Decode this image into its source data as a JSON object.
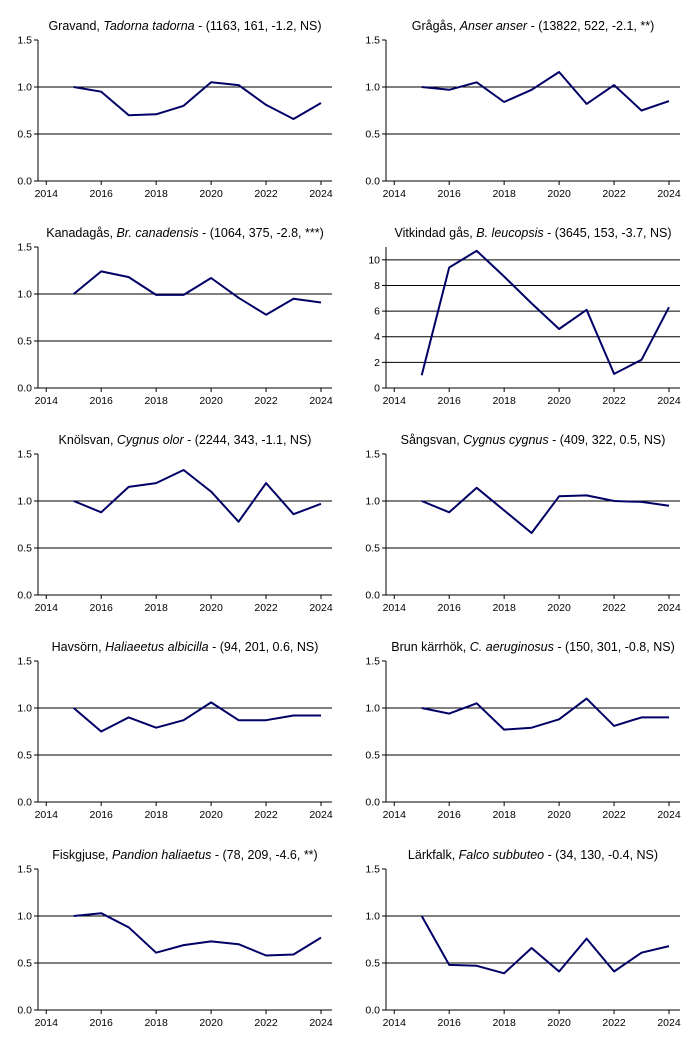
{
  "chart_data": [
    {
      "type": "line",
      "title": {
        "prefix": "Gravand, ",
        "species": "Tadorna tadorna",
        "stats": " - (1163, 161, -1.2, NS)"
      },
      "x": [
        2015,
        2016,
        2017,
        2018,
        2019,
        2020,
        2021,
        2022,
        2023,
        2024
      ],
      "values": [
        1.0,
        0.95,
        0.7,
        0.71,
        0.8,
        1.05,
        1.02,
        0.81,
        0.66,
        0.83
      ],
      "xlim": [
        2013.7,
        2024.4
      ],
      "ylim": [
        0,
        1.5
      ],
      "xticks": [
        2014,
        2016,
        2018,
        2020,
        2022,
        2024
      ],
      "yticks": [
        0.0,
        0.5,
        1.0,
        1.5
      ],
      "ytick_labels": [
        "0.0",
        "0.5",
        "1.0",
        "1.5"
      ],
      "hlines": [
        0.5,
        1.0
      ]
    },
    {
      "type": "line",
      "title": {
        "prefix": "Grågås, ",
        "species": "Anser anser",
        "stats": " - (13822, 522, -2.1, **)"
      },
      "x": [
        2015,
        2016,
        2017,
        2018,
        2019,
        2020,
        2021,
        2022,
        2023,
        2024
      ],
      "values": [
        1.0,
        0.97,
        1.05,
        0.84,
        0.97,
        1.16,
        0.82,
        1.02,
        0.75,
        0.85
      ],
      "xlim": [
        2013.7,
        2024.4
      ],
      "ylim": [
        0,
        1.5
      ],
      "xticks": [
        2014,
        2016,
        2018,
        2020,
        2022,
        2024
      ],
      "yticks": [
        0.0,
        0.5,
        1.0,
        1.5
      ],
      "ytick_labels": [
        "0.0",
        "0.5",
        "1.0",
        "1.5"
      ],
      "hlines": [
        0.5,
        1.0
      ]
    },
    {
      "type": "line",
      "title": {
        "prefix": "Kanadagås, ",
        "species": "Br. canadensis",
        "stats": " - (1064, 375, -2.8, ***)"
      },
      "x": [
        2015,
        2016,
        2017,
        2018,
        2019,
        2020,
        2021,
        2022,
        2023,
        2024
      ],
      "values": [
        1.0,
        1.24,
        1.18,
        0.99,
        0.99,
        1.17,
        0.96,
        0.78,
        0.95,
        0.91
      ],
      "xlim": [
        2013.7,
        2024.4
      ],
      "ylim": [
        0,
        1.5
      ],
      "xticks": [
        2014,
        2016,
        2018,
        2020,
        2022,
        2024
      ],
      "yticks": [
        0.0,
        0.5,
        1.0,
        1.5
      ],
      "ytick_labels": [
        "0.0",
        "0.5",
        "1.0",
        "1.5"
      ],
      "hlines": [
        0.5,
        1.0
      ]
    },
    {
      "type": "line",
      "title": {
        "prefix": "Vitkindad gås, ",
        "species": "B. leucopsis",
        "stats": " - (3645, 153, -3.7, NS)"
      },
      "x": [
        2015,
        2016,
        2017,
        2018,
        2019,
        2020,
        2021,
        2022,
        2023,
        2024
      ],
      "values": [
        1.0,
        9.4,
        10.7,
        8.7,
        6.6,
        4.6,
        6.1,
        1.1,
        2.2,
        6.3
      ],
      "xlim": [
        2013.7,
        2024.4
      ],
      "ylim": [
        0,
        11
      ],
      "xticks": [
        2014,
        2016,
        2018,
        2020,
        2022,
        2024
      ],
      "yticks": [
        0,
        2,
        4,
        6,
        8,
        10
      ],
      "ytick_labels": [
        "0",
        "2",
        "4",
        "6",
        "8",
        "10"
      ],
      "hlines": [
        2,
        4,
        6,
        8,
        10
      ]
    },
    {
      "type": "line",
      "title": {
        "prefix": "Knölsvan, ",
        "species": "Cygnus olor",
        "stats": " - (2244, 343, -1.1, NS)"
      },
      "x": [
        2015,
        2016,
        2017,
        2018,
        2019,
        2020,
        2021,
        2022,
        2023,
        2024
      ],
      "values": [
        1.0,
        0.88,
        1.15,
        1.19,
        1.33,
        1.1,
        0.78,
        1.19,
        0.86,
        0.97
      ],
      "xlim": [
        2013.7,
        2024.4
      ],
      "ylim": [
        0,
        1.5
      ],
      "xticks": [
        2014,
        2016,
        2018,
        2020,
        2022,
        2024
      ],
      "yticks": [
        0.0,
        0.5,
        1.0,
        1.5
      ],
      "ytick_labels": [
        "0.0",
        "0.5",
        "1.0",
        "1.5"
      ],
      "hlines": [
        0.5,
        1.0
      ]
    },
    {
      "type": "line",
      "title": {
        "prefix": "Sångsvan, ",
        "species": "Cygnus cygnus",
        "stats": " - (409, 322, 0.5, NS)"
      },
      "x": [
        2015,
        2016,
        2017,
        2018,
        2019,
        2020,
        2021,
        2022,
        2023,
        2024
      ],
      "values": [
        1.0,
        0.88,
        1.14,
        0.9,
        0.66,
        1.05,
        1.06,
        1.0,
        0.99,
        0.95
      ],
      "xlim": [
        2013.7,
        2024.4
      ],
      "ylim": [
        0,
        1.5
      ],
      "xticks": [
        2014,
        2016,
        2018,
        2020,
        2022,
        2024
      ],
      "yticks": [
        0.0,
        0.5,
        1.0,
        1.5
      ],
      "ytick_labels": [
        "0.0",
        "0.5",
        "1.0",
        "1.5"
      ],
      "hlines": [
        0.5,
        1.0
      ]
    },
    {
      "type": "line",
      "title": {
        "prefix": "Havsörn, ",
        "species": "Haliaeetus albicilla",
        "stats": " - (94, 201, 0.6, NS)"
      },
      "x": [
        2015,
        2016,
        2017,
        2018,
        2019,
        2020,
        2021,
        2022,
        2023,
        2024
      ],
      "values": [
        1.0,
        0.75,
        0.9,
        0.79,
        0.87,
        1.06,
        0.87,
        0.87,
        0.92,
        0.92
      ],
      "xlim": [
        2013.7,
        2024.4
      ],
      "ylim": [
        0,
        1.5
      ],
      "xticks": [
        2014,
        2016,
        2018,
        2020,
        2022,
        2024
      ],
      "yticks": [
        0.0,
        0.5,
        1.0,
        1.5
      ],
      "ytick_labels": [
        "0.0",
        "0.5",
        "1.0",
        "1.5"
      ],
      "hlines": [
        0.5,
        1.0
      ]
    },
    {
      "type": "line",
      "title": {
        "prefix": "Brun kärrhök, ",
        "species": "C. aeruginosus",
        "stats": " - (150, 301, -0.8, NS)"
      },
      "x": [
        2015,
        2016,
        2017,
        2018,
        2019,
        2020,
        2021,
        2022,
        2023,
        2024
      ],
      "values": [
        1.0,
        0.94,
        1.05,
        0.77,
        0.79,
        0.88,
        1.1,
        0.81,
        0.9,
        0.9
      ],
      "xlim": [
        2013.7,
        2024.4
      ],
      "ylim": [
        0,
        1.5
      ],
      "xticks": [
        2014,
        2016,
        2018,
        2020,
        2022,
        2024
      ],
      "yticks": [
        0.0,
        0.5,
        1.0,
        1.5
      ],
      "ytick_labels": [
        "0.0",
        "0.5",
        "1.0",
        "1.5"
      ],
      "hlines": [
        0.5,
        1.0
      ]
    },
    {
      "type": "line",
      "title": {
        "prefix": "Fiskgjuse, ",
        "species": "Pandion haliaetus",
        "stats": " - (78, 209, -4.6, **)"
      },
      "x": [
        2015,
        2016,
        2017,
        2018,
        2019,
        2020,
        2021,
        2022,
        2023,
        2024
      ],
      "values": [
        1.0,
        1.03,
        0.88,
        0.61,
        0.69,
        0.73,
        0.7,
        0.58,
        0.59,
        0.77
      ],
      "xlim": [
        2013.7,
        2024.4
      ],
      "ylim": [
        0,
        1.5
      ],
      "xticks": [
        2014,
        2016,
        2018,
        2020,
        2022,
        2024
      ],
      "yticks": [
        0.0,
        0.5,
        1.0,
        1.5
      ],
      "ytick_labels": [
        "0.0",
        "0.5",
        "1.0",
        "1.5"
      ],
      "hlines": [
        0.5,
        1.0
      ]
    },
    {
      "type": "line",
      "title": {
        "prefix": "Lärkfalk, ",
        "species": "Falco subbuteo",
        "stats": " - (34, 130, -0.4, NS)"
      },
      "x": [
        2015,
        2016,
        2017,
        2018,
        2019,
        2020,
        2021,
        2022,
        2023,
        2024
      ],
      "values": [
        1.0,
        0.48,
        0.47,
        0.39,
        0.66,
        0.41,
        0.76,
        0.41,
        0.61,
        0.68
      ],
      "xlim": [
        2013.7,
        2024.4
      ],
      "ylim": [
        0,
        1.5
      ],
      "xticks": [
        2014,
        2016,
        2018,
        2020,
        2022,
        2024
      ],
      "yticks": [
        0.0,
        0.5,
        1.0,
        1.5
      ],
      "ytick_labels": [
        "0.0",
        "0.5",
        "1.0",
        "1.5"
      ],
      "hlines": [
        0.5,
        1.0
      ]
    }
  ],
  "colors": {
    "line": "#000066",
    "axis": "#000000",
    "grid": "#000000",
    "background": "#ffffff"
  }
}
